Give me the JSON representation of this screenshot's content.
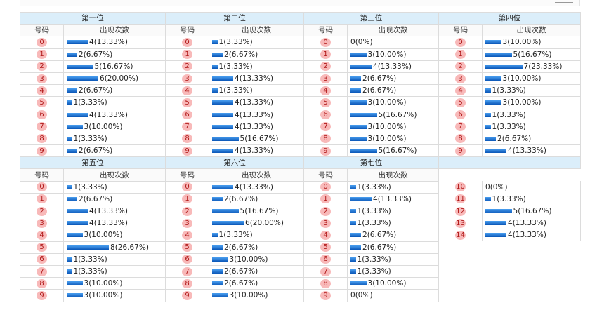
{
  "headers": {
    "number_col": "号码",
    "count_col": "出现次数"
  },
  "top_row": [
    {
      "title": "第一位",
      "rows": [
        {
          "n": "0",
          "c": 4,
          "p": "13.33%"
        },
        {
          "n": "1",
          "c": 2,
          "p": "6.67%"
        },
        {
          "n": "2",
          "c": 5,
          "p": "16.67%"
        },
        {
          "n": "3",
          "c": 6,
          "p": "20.00%"
        },
        {
          "n": "4",
          "c": 2,
          "p": "6.67%"
        },
        {
          "n": "5",
          "c": 1,
          "p": "3.33%"
        },
        {
          "n": "6",
          "c": 4,
          "p": "13.33%"
        },
        {
          "n": "7",
          "c": 3,
          "p": "10.00%"
        },
        {
          "n": "8",
          "c": 1,
          "p": "3.33%"
        },
        {
          "n": "9",
          "c": 2,
          "p": "6.67%"
        }
      ]
    },
    {
      "title": "第二位",
      "rows": [
        {
          "n": "0",
          "c": 1,
          "p": "3.33%"
        },
        {
          "n": "1",
          "c": 2,
          "p": "6.67%"
        },
        {
          "n": "2",
          "c": 1,
          "p": "3.33%"
        },
        {
          "n": "3",
          "c": 4,
          "p": "13.33%"
        },
        {
          "n": "4",
          "c": 1,
          "p": "3.33%"
        },
        {
          "n": "5",
          "c": 4,
          "p": "13.33%"
        },
        {
          "n": "6",
          "c": 4,
          "p": "13.33%"
        },
        {
          "n": "7",
          "c": 4,
          "p": "13.33%"
        },
        {
          "n": "8",
          "c": 5,
          "p": "16.67%"
        },
        {
          "n": "9",
          "c": 4,
          "p": "13.33%"
        }
      ]
    },
    {
      "title": "第三位",
      "rows": [
        {
          "n": "0",
          "c": 0,
          "p": "0%"
        },
        {
          "n": "1",
          "c": 3,
          "p": "10.00%"
        },
        {
          "n": "2",
          "c": 4,
          "p": "13.33%"
        },
        {
          "n": "3",
          "c": 2,
          "p": "6.67%"
        },
        {
          "n": "4",
          "c": 2,
          "p": "6.67%"
        },
        {
          "n": "5",
          "c": 3,
          "p": "10.00%"
        },
        {
          "n": "6",
          "c": 5,
          "p": "16.67%"
        },
        {
          "n": "7",
          "c": 3,
          "p": "10.00%"
        },
        {
          "n": "8",
          "c": 3,
          "p": "10.00%"
        },
        {
          "n": "9",
          "c": 5,
          "p": "16.67%"
        }
      ]
    },
    {
      "title": "第四位",
      "rows": [
        {
          "n": "0",
          "c": 3,
          "p": "10.00%"
        },
        {
          "n": "1",
          "c": 5,
          "p": "16.67%"
        },
        {
          "n": "2",
          "c": 7,
          "p": "23.33%"
        },
        {
          "n": "3",
          "c": 3,
          "p": "10.00%"
        },
        {
          "n": "4",
          "c": 1,
          "p": "3.33%"
        },
        {
          "n": "5",
          "c": 3,
          "p": "10.00%"
        },
        {
          "n": "6",
          "c": 1,
          "p": "3.33%"
        },
        {
          "n": "7",
          "c": 1,
          "p": "3.33%"
        },
        {
          "n": "8",
          "c": 2,
          "p": "6.67%"
        },
        {
          "n": "9",
          "c": 4,
          "p": "13.33%"
        }
      ]
    }
  ],
  "bottom_row": [
    {
      "title": "第五位",
      "rows": [
        {
          "n": "0",
          "c": 1,
          "p": "3.33%"
        },
        {
          "n": "1",
          "c": 2,
          "p": "6.67%"
        },
        {
          "n": "2",
          "c": 4,
          "p": "13.33%"
        },
        {
          "n": "3",
          "c": 4,
          "p": "13.33%"
        },
        {
          "n": "4",
          "c": 3,
          "p": "10.00%"
        },
        {
          "n": "5",
          "c": 8,
          "p": "26.67%"
        },
        {
          "n": "6",
          "c": 1,
          "p": "3.33%"
        },
        {
          "n": "7",
          "c": 1,
          "p": "3.33%"
        },
        {
          "n": "8",
          "c": 3,
          "p": "10.00%"
        },
        {
          "n": "9",
          "c": 3,
          "p": "10.00%"
        }
      ]
    },
    {
      "title": "第六位",
      "rows": [
        {
          "n": "0",
          "c": 4,
          "p": "13.33%"
        },
        {
          "n": "1",
          "c": 2,
          "p": "6.67%"
        },
        {
          "n": "2",
          "c": 5,
          "p": "16.67%"
        },
        {
          "n": "3",
          "c": 6,
          "p": "20.00%"
        },
        {
          "n": "4",
          "c": 1,
          "p": "3.33%"
        },
        {
          "n": "5",
          "c": 2,
          "p": "6.67%"
        },
        {
          "n": "6",
          "c": 3,
          "p": "10.00%"
        },
        {
          "n": "7",
          "c": 2,
          "p": "6.67%"
        },
        {
          "n": "8",
          "c": 2,
          "p": "6.67%"
        },
        {
          "n": "9",
          "c": 3,
          "p": "10.00%"
        }
      ]
    },
    {
      "title": "第七位",
      "rows": [
        {
          "n": "0",
          "c": 1,
          "p": "3.33%"
        },
        {
          "n": "1",
          "c": 4,
          "p": "13.33%"
        },
        {
          "n": "2",
          "c": 1,
          "p": "3.33%"
        },
        {
          "n": "3",
          "c": 1,
          "p": "3.33%"
        },
        {
          "n": "4",
          "c": 2,
          "p": "6.67%"
        },
        {
          "n": "5",
          "c": 2,
          "p": "6.67%"
        },
        {
          "n": "6",
          "c": 1,
          "p": "3.33%"
        },
        {
          "n": "7",
          "c": 1,
          "p": "3.33%"
        },
        {
          "n": "8",
          "c": 3,
          "p": "10.00%"
        },
        {
          "n": "9",
          "c": 0,
          "p": "0%"
        }
      ]
    },
    {
      "title": "",
      "rows": [
        {
          "n": "10",
          "c": 0,
          "p": "0%"
        },
        {
          "n": "11",
          "c": 1,
          "p": "3.33%"
        },
        {
          "n": "12",
          "c": 5,
          "p": "16.67%"
        },
        {
          "n": "13",
          "c": 4,
          "p": "13.33%"
        },
        {
          "n": "14",
          "c": 4,
          "p": "13.33%"
        }
      ]
    }
  ],
  "colors": {
    "bar": "#1565c8",
    "ball_bg": "#f8b9b9",
    "ball_text": "#b01818",
    "header_bg": "#dbeefa"
  }
}
